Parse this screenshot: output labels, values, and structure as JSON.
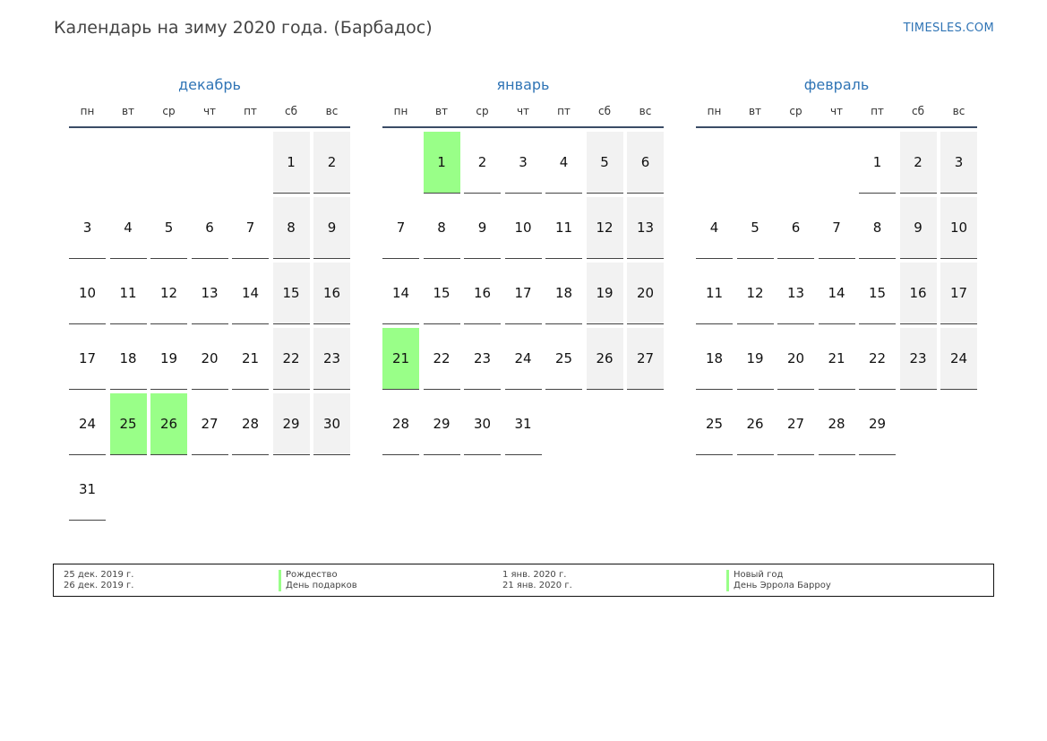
{
  "header": {
    "title": "Календарь на зиму 2020 года. (Барбадос)",
    "site": "TIMESLES.COM"
  },
  "weekdays": [
    "пн",
    "вт",
    "ср",
    "чт",
    "пт",
    "сб",
    "вс"
  ],
  "colors": {
    "accent": "#2f74b5",
    "holiday": "#99ff88",
    "weekend": "#f2f2f2"
  },
  "months": [
    {
      "name": "декабрь",
      "offset": 6,
      "days": [
        "1",
        "2",
        "3",
        "4",
        "5",
        "6",
        "7",
        "8",
        "9",
        "10",
        "11",
        "12",
        "13",
        "14",
        "15",
        "16",
        "17",
        "18",
        "19",
        "20",
        "21",
        "22",
        "23",
        "24",
        "25",
        "26",
        "27",
        "28",
        "29",
        "30",
        "31"
      ],
      "holidays": [
        "25",
        "26"
      ]
    },
    {
      "name": "январь",
      "offset": 2,
      "days": [
        "1",
        "2",
        "3",
        "4",
        "5",
        "6",
        "7",
        "8",
        "9",
        "10",
        "11",
        "12",
        "13",
        "14",
        "15",
        "16",
        "17",
        "18",
        "19",
        "20",
        "21",
        "22",
        "23",
        "24",
        "25",
        "26",
        "27",
        "28",
        "29",
        "30",
        "31"
      ],
      "holidays": [
        "1",
        "21"
      ]
    },
    {
      "name": "февраль",
      "offset": 5,
      "days": [
        "1",
        "2",
        "3",
        "4",
        "5",
        "6",
        "7",
        "8",
        "9",
        "10",
        "11",
        "12",
        "13",
        "14",
        "15",
        "16",
        "17",
        "18",
        "19",
        "20",
        "21",
        "22",
        "23",
        "24",
        "25",
        "26",
        "27",
        "28",
        "29"
      ],
      "holidays": []
    }
  ],
  "legend": [
    {
      "date": "25 дек. 2019 г.",
      "name": "Рождество"
    },
    {
      "date": "26 дек. 2019 г.",
      "name": "День подарков"
    },
    {
      "date": "1 янв. 2020 г.",
      "name": "Новый год"
    },
    {
      "date": "21 янв. 2020 г.",
      "name": "День Эррола Барроу"
    }
  ]
}
